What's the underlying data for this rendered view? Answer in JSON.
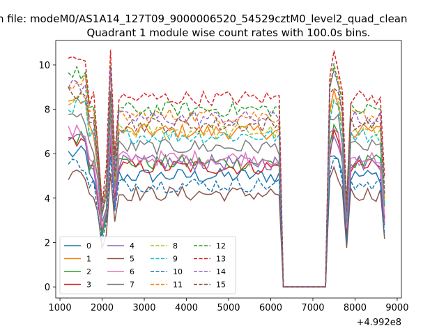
{
  "chart_data": {
    "type": "line",
    "title_line1": "n file: modeM0/AS1A14_127T09_9000006520_54529cztM0_level2_quad_clean",
    "title_line2": "Quadrant 1 module wise count rates with 100.0s bins.",
    "x_offset_label": "+4.992e8",
    "xlim": [
      900,
      9100
    ],
    "ylim": [
      -0.5,
      11.1
    ],
    "x_ticks": [
      1000,
      2000,
      3000,
      4000,
      5000,
      6000,
      7000,
      8000,
      9000
    ],
    "y_ticks": [
      0,
      2,
      4,
      6,
      8,
      10
    ],
    "grid": false,
    "legend": "lower-left, 4 columns",
    "colors": [
      "#1f77b4",
      "#ff7f0e",
      "#2ca02c",
      "#d62728",
      "#9467bd",
      "#8c564b",
      "#e377c2",
      "#7f7f7f",
      "#bcbd22",
      "#17becf"
    ],
    "series_base": [
      {
        "name": "0",
        "level": 5.0
      },
      {
        "name": "1",
        "level": 7.0
      },
      {
        "name": "2",
        "level": 5.6
      },
      {
        "name": "3",
        "level": 5.4
      },
      {
        "name": "4",
        "level": 5.6
      },
      {
        "name": "5",
        "level": 4.2
      },
      {
        "name": "6",
        "level": 5.8
      },
      {
        "name": "7",
        "level": 6.3
      },
      {
        "name": "8",
        "level": 7.0
      },
      {
        "name": "9",
        "level": 6.8
      },
      {
        "name": "10",
        "level": 4.6
      },
      {
        "name": "11",
        "level": 7.7
      },
      {
        "name": "12",
        "level": 8.0
      },
      {
        "name": "13",
        "level": 8.5
      },
      {
        "name": "14",
        "level": 7.6
      },
      {
        "name": "15",
        "level": 7.3
      }
    ]
  }
}
